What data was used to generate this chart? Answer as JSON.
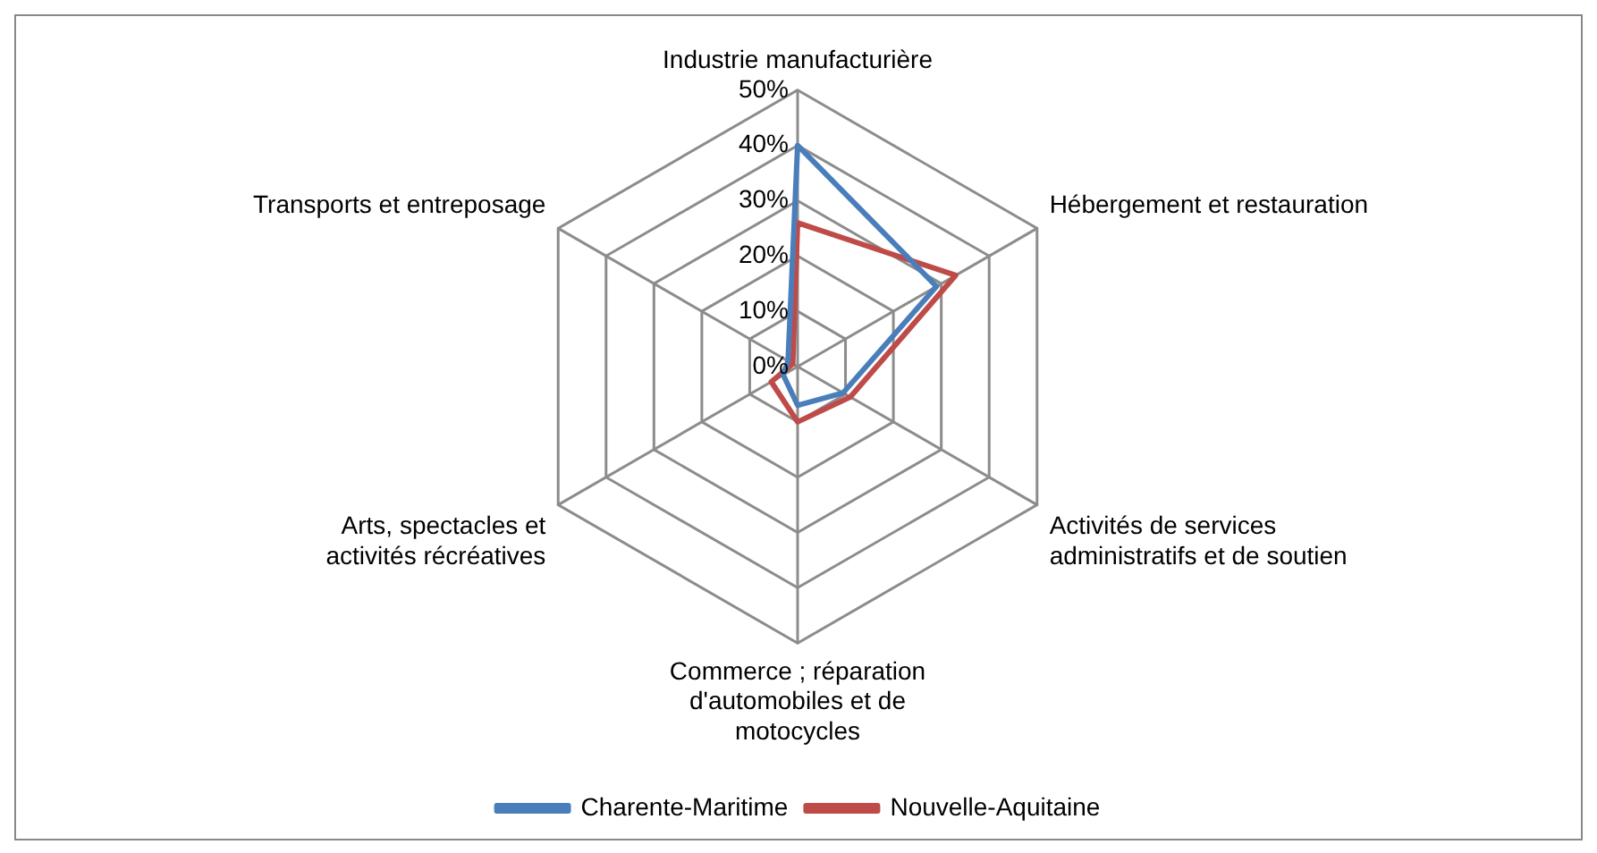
{
  "chart_data": {
    "type": "radar",
    "categories": [
      "Industrie manufacturière",
      "Hébergement et restauration",
      "Activités de services administratifs et de soutien",
      "Commerce ; réparation d'automobiles et de motocycles",
      "Arts, spectacles et activités récréatives",
      "Transports et entreposage"
    ],
    "series": [
      {
        "name": "Charente-Maritime",
        "color": "#4a7ebb",
        "values": [
          40,
          29,
          9.5,
          7,
          3,
          2
        ]
      },
      {
        "name": "Nouvelle-Aquitaine",
        "color": "#be4b48",
        "values": [
          26,
          33,
          11,
          10,
          5.5,
          1
        ]
      }
    ],
    "ylim": [
      0,
      50
    ],
    "yticks": [
      {
        "value": 0,
        "label": "0%"
      },
      {
        "value": 10,
        "label": "10%"
      },
      {
        "value": 20,
        "label": "20%"
      },
      {
        "value": 30,
        "label": "30%"
      },
      {
        "value": 40,
        "label": "40%"
      },
      {
        "value": 50,
        "label": "50%"
      }
    ],
    "grid": true,
    "legend": "bottom",
    "marker": "none"
  }
}
